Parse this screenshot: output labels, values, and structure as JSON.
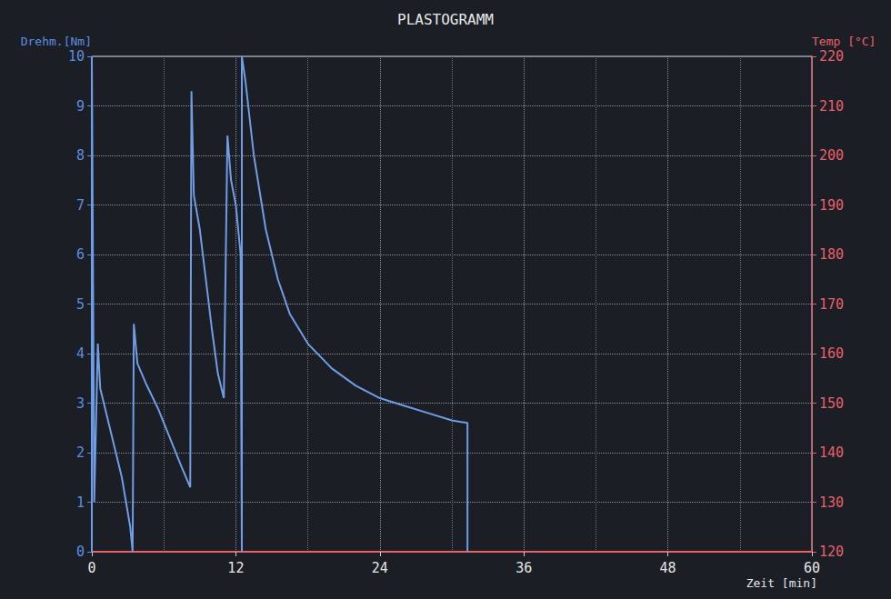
{
  "chart_data": {
    "type": "line",
    "title": "PLASTOGRAMM",
    "y_label": "Drehm.[Nm]",
    "y2_label": "Temp [°C]",
    "x_label": "Zeit [min]",
    "x": [
      0,
      0,
      0.2,
      0.5,
      0.7,
      1.5,
      2.5,
      3.2,
      3.4,
      3.5,
      3.8,
      4.5,
      5.5,
      6.5,
      7.5,
      8.2,
      8.3,
      8.5,
      9,
      9.5,
      10,
      10.5,
      11,
      11.3,
      11.6,
      12,
      12.4,
      12.5,
      12.5,
      12.8,
      13.5,
      14.5,
      15.5,
      16.5,
      18,
      20,
      22,
      24,
      26,
      28,
      30,
      31.3,
      31.3
    ],
    "values": [
      0,
      10,
      1,
      4.2,
      3.3,
      2.5,
      1.5,
      0.5,
      0,
      4.6,
      3.8,
      3.4,
      2.9,
      2.3,
      1.7,
      1.3,
      9.3,
      7.2,
      6.5,
      5.5,
      4.5,
      3.6,
      3.1,
      8.4,
      7.5,
      7,
      6,
      0,
      10,
      9.5,
      8,
      6.5,
      5.5,
      4.8,
      4.2,
      3.7,
      3.35,
      3.1,
      2.95,
      2.8,
      2.65,
      2.6,
      0
    ],
    "color": "#6f9de6",
    "xlim": [
      0,
      60
    ],
    "xticks": [
      0,
      12,
      24,
      36,
      48,
      60
    ],
    "ylim": [
      0,
      10
    ],
    "yticks": [
      0,
      1,
      2,
      3,
      4,
      5,
      6,
      7,
      8,
      9,
      10
    ],
    "y2lim": [
      120,
      220
    ],
    "y2ticks": [
      120,
      130,
      140,
      150,
      160,
      170,
      180,
      190,
      200,
      210,
      220
    ],
    "grid": true
  }
}
